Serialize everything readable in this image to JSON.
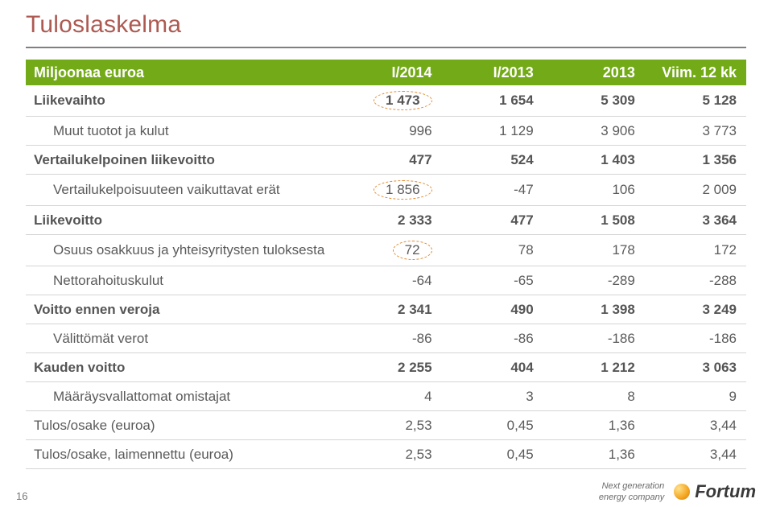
{
  "title": "Tuloslaskelma",
  "page_number": "16",
  "brand": {
    "tagline_line1": "Next generation",
    "tagline_line2": "energy company",
    "name": "Fortum"
  },
  "table": {
    "headers": [
      "Miljoonaa euroa",
      "I/2014",
      "I/2013",
      "2013",
      "Viim. 12 kk"
    ],
    "rows": [
      {
        "label": "Liikevaihto",
        "vals": [
          "1 473",
          "1 654",
          "5 309",
          "5 128"
        ],
        "bold": true,
        "indent": 0,
        "circle_col": 0
      },
      {
        "label": "Muut tuotot ja kulut",
        "vals": [
          "996",
          "1 129",
          "3 906",
          "3 773"
        ],
        "bold": false,
        "indent": 1
      },
      {
        "label": "Vertailukelpoinen liikevoitto",
        "vals": [
          "477",
          "524",
          "1 403",
          "1 356"
        ],
        "bold": true,
        "indent": 0
      },
      {
        "label": "Vertailukelpoisuuteen vaikuttavat erät",
        "vals": [
          "1 856",
          "-47",
          "106",
          "2 009"
        ],
        "bold": false,
        "indent": 1,
        "circle_col": 0
      },
      {
        "label": "Liikevoitto",
        "vals": [
          "2 333",
          "477",
          "1 508",
          "3 364"
        ],
        "bold": true,
        "indent": 0
      },
      {
        "label": "Osuus osakkuus ja yhteisyritysten tuloksesta",
        "vals": [
          "72",
          "78",
          "178",
          "172"
        ],
        "bold": false,
        "indent": 1,
        "circle_col": 0
      },
      {
        "label": "Nettorahoituskulut",
        "vals": [
          "-64",
          "-65",
          "-289",
          "-288"
        ],
        "bold": false,
        "indent": 1
      },
      {
        "label": "Voitto ennen veroja",
        "vals": [
          "2 341",
          "490",
          "1 398",
          "3 249"
        ],
        "bold": true,
        "indent": 0
      },
      {
        "label": "Välittömät verot",
        "vals": [
          "-86",
          "-86",
          "-186",
          "-186"
        ],
        "bold": false,
        "indent": 1
      },
      {
        "label": "Kauden voitto",
        "vals": [
          "2 255",
          "404",
          "1 212",
          "3 063"
        ],
        "bold": true,
        "indent": 0
      },
      {
        "label": "Määräysvallattomat omistajat",
        "vals": [
          "4",
          "3",
          "8",
          "9"
        ],
        "bold": false,
        "indent": 1
      },
      {
        "label": "Tulos/osake (euroa)",
        "vals": [
          "2,53",
          "0,45",
          "1,36",
          "3,44"
        ],
        "bold": false,
        "indent": 0
      },
      {
        "label": "Tulos/osake, laimennettu (euroa)",
        "vals": [
          "2,53",
          "0,45",
          "1,36",
          "3,44"
        ],
        "bold": false,
        "indent": 0
      }
    ]
  },
  "colors": {
    "title": "#ad5a52",
    "header_bg": "#73aa17",
    "header_text": "#ffffff",
    "row_text": "#5a5a5a",
    "row_border": "#d5d5d5",
    "circle_border": "#e38b2e",
    "underline": "#808080"
  }
}
